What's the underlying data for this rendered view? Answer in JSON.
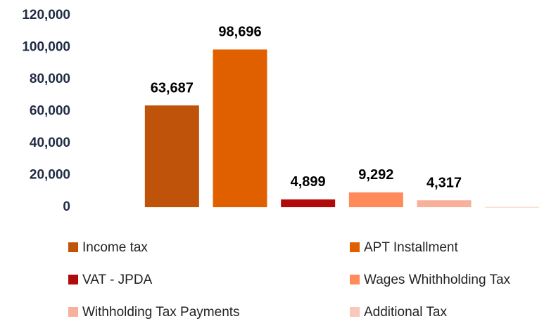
{
  "chart_data": {
    "type": "bar",
    "categories": [
      null
    ],
    "series": [
      {
        "name": "Income tax",
        "color": "#c0530a",
        "values": [
          63687
        ],
        "value_labels": [
          "63,687"
        ]
      },
      {
        "name": "APT Installment",
        "color": "#e06000",
        "values": [
          98696
        ],
        "value_labels": [
          "98,696"
        ]
      },
      {
        "name": "VAT - JPDA",
        "color": "#b00a0a",
        "values": [
          4899
        ],
        "value_labels": [
          "4,899"
        ]
      },
      {
        "name": "Wages Whithholding Tax",
        "color": "#ff8a5a",
        "values": [
          9292
        ],
        "value_labels": [
          "9,292"
        ]
      },
      {
        "name": "Withholding Tax Payments",
        "color": "#f8b09a",
        "values": [
          4317
        ],
        "value_labels": [
          "4,317"
        ]
      },
      {
        "name": "Additional Tax",
        "color": "#f8c8b8",
        "values": [
          200
        ]
      }
    ],
    "ylim": [
      0,
      120000
    ],
    "yticks": [
      0,
      {
        "value": 20000,
        "label": "20,000"
      },
      {
        "value": 40000,
        "label": "40,000"
      },
      {
        "value": 60000,
        "label": "60,000"
      },
      {
        "value": 80000,
        "label": "80,000"
      },
      {
        "value": 100000,
        "label": "100,000"
      },
      {
        "value": 120000,
        "label": "120,000"
      }
    ],
    "grid": false,
    "legend": "bottom"
  }
}
